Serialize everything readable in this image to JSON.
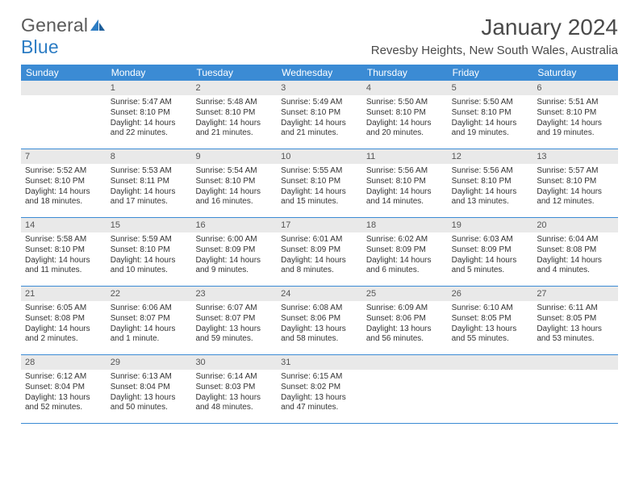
{
  "logo": {
    "part1": "General",
    "part2": "Blue"
  },
  "title": "January 2024",
  "location": "Revesby Heights, New South Wales, Australia",
  "colors": {
    "header_bg": "#3b8bd4",
    "daynum_bg": "#e9e9e9",
    "text": "#333333",
    "title_text": "#4a4a4a",
    "logo_gray": "#5a5a5a",
    "logo_blue": "#2d7dc4"
  },
  "dow": [
    "Sunday",
    "Monday",
    "Tuesday",
    "Wednesday",
    "Thursday",
    "Friday",
    "Saturday"
  ],
  "weeks": [
    [
      null,
      {
        "n": "1",
        "sr": "5:47 AM",
        "ss": "8:10 PM",
        "dl": "14 hours and 22 minutes."
      },
      {
        "n": "2",
        "sr": "5:48 AM",
        "ss": "8:10 PM",
        "dl": "14 hours and 21 minutes."
      },
      {
        "n": "3",
        "sr": "5:49 AM",
        "ss": "8:10 PM",
        "dl": "14 hours and 21 minutes."
      },
      {
        "n": "4",
        "sr": "5:50 AM",
        "ss": "8:10 PM",
        "dl": "14 hours and 20 minutes."
      },
      {
        "n": "5",
        "sr": "5:50 AM",
        "ss": "8:10 PM",
        "dl": "14 hours and 19 minutes."
      },
      {
        "n": "6",
        "sr": "5:51 AM",
        "ss": "8:10 PM",
        "dl": "14 hours and 19 minutes."
      }
    ],
    [
      {
        "n": "7",
        "sr": "5:52 AM",
        "ss": "8:10 PM",
        "dl": "14 hours and 18 minutes."
      },
      {
        "n": "8",
        "sr": "5:53 AM",
        "ss": "8:11 PM",
        "dl": "14 hours and 17 minutes."
      },
      {
        "n": "9",
        "sr": "5:54 AM",
        "ss": "8:10 PM",
        "dl": "14 hours and 16 minutes."
      },
      {
        "n": "10",
        "sr": "5:55 AM",
        "ss": "8:10 PM",
        "dl": "14 hours and 15 minutes."
      },
      {
        "n": "11",
        "sr": "5:56 AM",
        "ss": "8:10 PM",
        "dl": "14 hours and 14 minutes."
      },
      {
        "n": "12",
        "sr": "5:56 AM",
        "ss": "8:10 PM",
        "dl": "14 hours and 13 minutes."
      },
      {
        "n": "13",
        "sr": "5:57 AM",
        "ss": "8:10 PM",
        "dl": "14 hours and 12 minutes."
      }
    ],
    [
      {
        "n": "14",
        "sr": "5:58 AM",
        "ss": "8:10 PM",
        "dl": "14 hours and 11 minutes."
      },
      {
        "n": "15",
        "sr": "5:59 AM",
        "ss": "8:10 PM",
        "dl": "14 hours and 10 minutes."
      },
      {
        "n": "16",
        "sr": "6:00 AM",
        "ss": "8:09 PM",
        "dl": "14 hours and 9 minutes."
      },
      {
        "n": "17",
        "sr": "6:01 AM",
        "ss": "8:09 PM",
        "dl": "14 hours and 8 minutes."
      },
      {
        "n": "18",
        "sr": "6:02 AM",
        "ss": "8:09 PM",
        "dl": "14 hours and 6 minutes."
      },
      {
        "n": "19",
        "sr": "6:03 AM",
        "ss": "8:09 PM",
        "dl": "14 hours and 5 minutes."
      },
      {
        "n": "20",
        "sr": "6:04 AM",
        "ss": "8:08 PM",
        "dl": "14 hours and 4 minutes."
      }
    ],
    [
      {
        "n": "21",
        "sr": "6:05 AM",
        "ss": "8:08 PM",
        "dl": "14 hours and 2 minutes."
      },
      {
        "n": "22",
        "sr": "6:06 AM",
        "ss": "8:07 PM",
        "dl": "14 hours and 1 minute."
      },
      {
        "n": "23",
        "sr": "6:07 AM",
        "ss": "8:07 PM",
        "dl": "13 hours and 59 minutes."
      },
      {
        "n": "24",
        "sr": "6:08 AM",
        "ss": "8:06 PM",
        "dl": "13 hours and 58 minutes."
      },
      {
        "n": "25",
        "sr": "6:09 AM",
        "ss": "8:06 PM",
        "dl": "13 hours and 56 minutes."
      },
      {
        "n": "26",
        "sr": "6:10 AM",
        "ss": "8:05 PM",
        "dl": "13 hours and 55 minutes."
      },
      {
        "n": "27",
        "sr": "6:11 AM",
        "ss": "8:05 PM",
        "dl": "13 hours and 53 minutes."
      }
    ],
    [
      {
        "n": "28",
        "sr": "6:12 AM",
        "ss": "8:04 PM",
        "dl": "13 hours and 52 minutes."
      },
      {
        "n": "29",
        "sr": "6:13 AM",
        "ss": "8:04 PM",
        "dl": "13 hours and 50 minutes."
      },
      {
        "n": "30",
        "sr": "6:14 AM",
        "ss": "8:03 PM",
        "dl": "13 hours and 48 minutes."
      },
      {
        "n": "31",
        "sr": "6:15 AM",
        "ss": "8:02 PM",
        "dl": "13 hours and 47 minutes."
      },
      null,
      null,
      null
    ]
  ],
  "labels": {
    "sunrise": "Sunrise: ",
    "sunset": "Sunset: ",
    "daylight": "Daylight: "
  }
}
